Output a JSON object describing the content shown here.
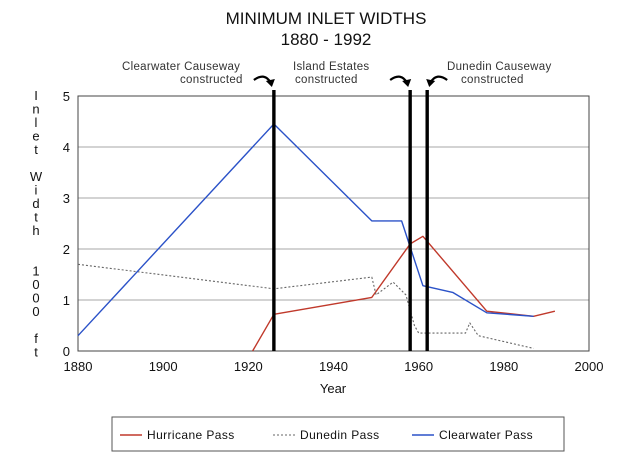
{
  "chart_data": {
    "type": "line",
    "title": "MINIMUM INLET WIDTHS",
    "subtitle": "1880 - 1992",
    "xlabel": "Year",
    "ylabel": "Inlet Width 1000 ft",
    "ylabel_chars": [
      "I",
      "n",
      "l",
      "e",
      "t",
      "",
      "W",
      "i",
      "d",
      "t",
      "h",
      "",
      "",
      "1",
      "0",
      "0",
      "0",
      "",
      "f",
      "t"
    ],
    "xlim": [
      1880,
      2000
    ],
    "ylim": [
      0,
      5
    ],
    "x_ticks": [
      1880,
      1900,
      1920,
      1940,
      1960,
      1980,
      2000
    ],
    "y_ticks": [
      0,
      1,
      2,
      3,
      4,
      5
    ],
    "grid": "horizontal",
    "legend_position": "bottom",
    "series": [
      {
        "name": "Hurricane Pass",
        "color": "#c0392b",
        "style": "solid",
        "points": [
          [
            1921,
            0.0
          ],
          [
            1926,
            0.72
          ],
          [
            1949,
            1.05
          ],
          [
            1958,
            2.1
          ],
          [
            1961,
            2.25
          ],
          [
            1976,
            0.78
          ],
          [
            1987,
            0.68
          ],
          [
            1992,
            0.78
          ]
        ]
      },
      {
        "name": "Dunedin Pass",
        "color": "#666666",
        "style": "dotted",
        "points": [
          [
            1880,
            1.7
          ],
          [
            1926,
            1.22
          ],
          [
            1949,
            1.45
          ],
          [
            1950,
            1.1
          ],
          [
            1954,
            1.35
          ],
          [
            1957,
            1.1
          ],
          [
            1959,
            0.5
          ],
          [
            1960,
            0.35
          ],
          [
            1971,
            0.35
          ],
          [
            1972,
            0.55
          ],
          [
            1974,
            0.3
          ],
          [
            1987,
            0.05
          ]
        ]
      },
      {
        "name": "Clearwater Pass",
        "color": "#2b52c8",
        "style": "solid",
        "points": [
          [
            1880,
            0.3
          ],
          [
            1926,
            4.45
          ],
          [
            1949,
            2.55
          ],
          [
            1956,
            2.55
          ],
          [
            1961,
            1.28
          ],
          [
            1968,
            1.15
          ],
          [
            1976,
            0.75
          ],
          [
            1987,
            0.68
          ]
        ]
      }
    ],
    "events": [
      {
        "year": 1926,
        "label_lines": [
          "Clearwater Causeway",
          "constructed"
        ],
        "arrow": "right"
      },
      {
        "year": 1958,
        "label_lines": [
          "Island Estates",
          "constructed"
        ],
        "arrow": "right"
      },
      {
        "year": 1962,
        "label_lines": [
          "Dunedin Causeway",
          "constructed"
        ],
        "arrow": "left"
      }
    ]
  }
}
